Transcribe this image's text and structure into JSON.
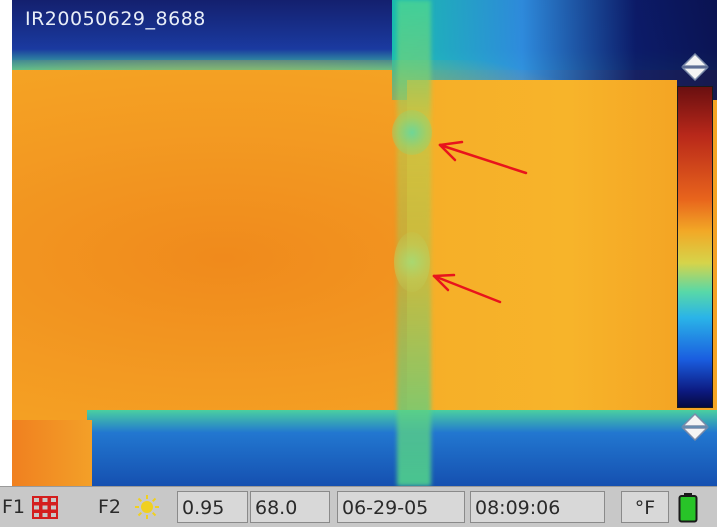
{
  "image": {
    "filename": "IR20050629_8688"
  },
  "status_bar": {
    "f1_label": "F1",
    "f1_icon": "grid-icon",
    "f2_label": "F2",
    "f2_icon": "sun-icon",
    "emissivity": "0.95",
    "temperature": "68.0",
    "date": "06-29-05",
    "time": "08:09:06",
    "unit": "°F",
    "battery_icon": "battery-icon"
  },
  "scale": {
    "up_icon": "scale-up-arrow-icon",
    "down_icon": "scale-down-arrow-icon"
  },
  "annotations": {
    "arrow_color": "#e8141c"
  },
  "colors": {
    "status_bg": "#c8c8c8",
    "grid_icon": "#d41e1e",
    "sun_icon": "#f0d020",
    "battery": "#28c428"
  }
}
